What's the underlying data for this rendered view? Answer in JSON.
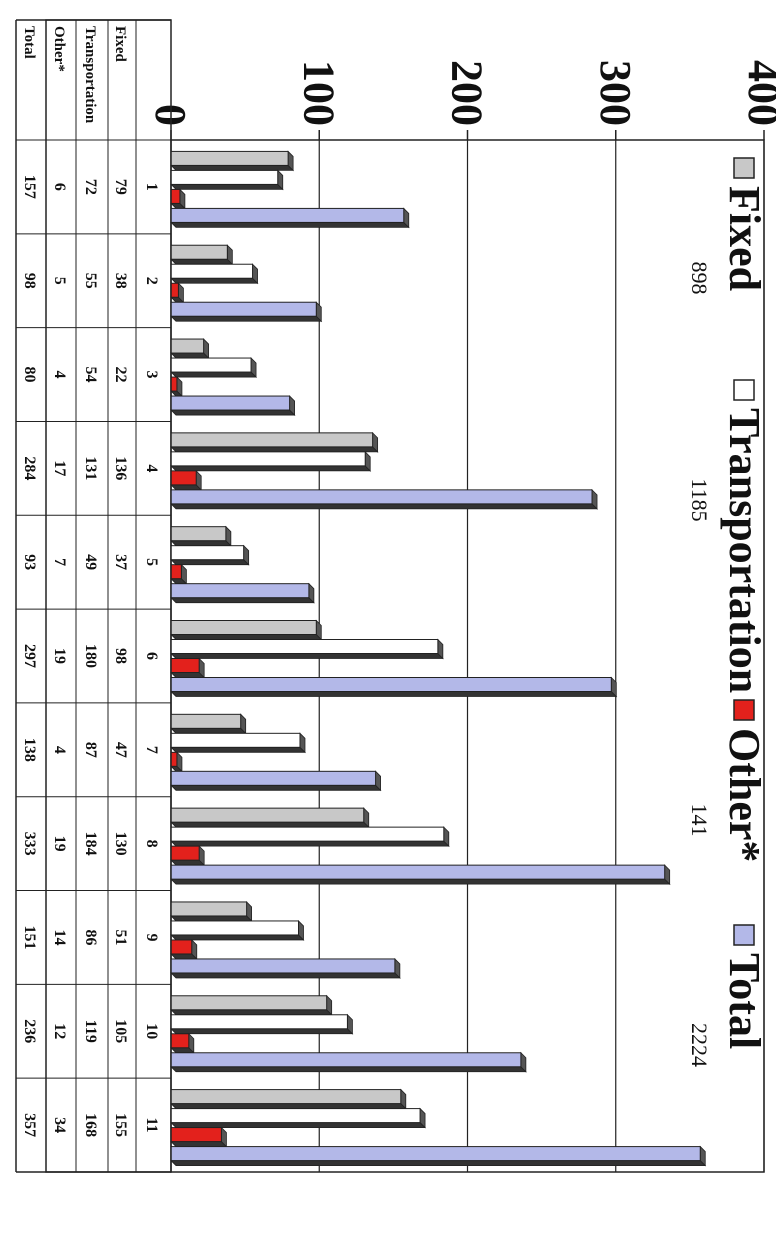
{
  "chart_data": {
    "type": "bar",
    "categories": [
      "1",
      "2",
      "3",
      "4",
      "5",
      "6",
      "7",
      "8",
      "9",
      "10",
      "11"
    ],
    "series": [
      {
        "name": "Fixed",
        "values": [
          79,
          38,
          22,
          136,
          37,
          98,
          47,
          130,
          51,
          105,
          155
        ],
        "color": "#c8c8c8"
      },
      {
        "name": "Transportation",
        "values": [
          72,
          55,
          54,
          131,
          49,
          180,
          87,
          184,
          86,
          119,
          168
        ],
        "color": "#ffffff"
      },
      {
        "name": "Other*",
        "values": [
          6,
          5,
          4,
          17,
          7,
          19,
          4,
          19,
          14,
          12,
          34
        ],
        "color": "#e3211c"
      },
      {
        "name": "Total",
        "values": [
          157,
          98,
          80,
          284,
          93,
          297,
          138,
          333,
          151,
          236,
          357
        ],
        "color": "#b3b8e8"
      }
    ],
    "legend_totals": [
      "898",
      "1185",
      "141",
      "2224"
    ],
    "y_ticks": [
      "0",
      "100",
      "200",
      "300",
      "400"
    ],
    "ylim": [
      0,
      400
    ],
    "grid": true,
    "legend_position": "top"
  }
}
